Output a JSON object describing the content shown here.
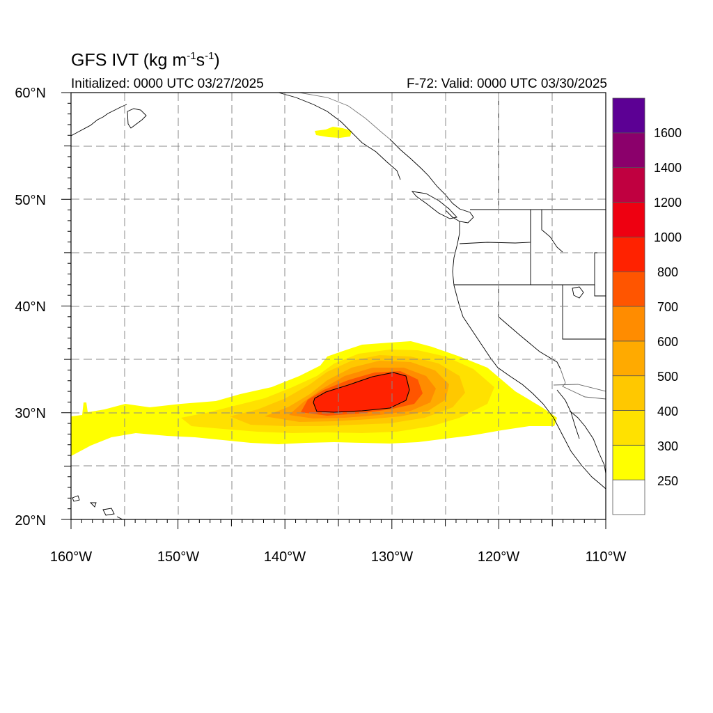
{
  "title": {
    "main_prefix": "GFS IVT (kg m",
    "exp1": "-1",
    "main_mid": "s",
    "exp2": "-1",
    "main_suffix": ")",
    "initialized": "Initialized: 0000 UTC 03/27/2025",
    "valid": "F-72: Valid: 0000 UTC 03/30/2025"
  },
  "map": {
    "lon_range": [
      -160,
      -110
    ],
    "lat_range": [
      20,
      60
    ],
    "lon_labels": [
      "160°W",
      "150°W",
      "140°W",
      "130°W",
      "120°W",
      "110°W"
    ],
    "lat_labels": [
      "60°N",
      "50°N",
      "40°N",
      "30°N",
      "20°N"
    ],
    "grid": "dashed every 5°",
    "contour_level": 800
  },
  "colorbar": {
    "labels": [
      "250",
      "300",
      "400",
      "500",
      "600",
      "700",
      "800",
      "1000",
      "1200",
      "1400",
      "1600"
    ],
    "colors": [
      "#ffffff",
      "#ffff00",
      "#ffe100",
      "#ffc800",
      "#ffaa00",
      "#ff8c00",
      "#ff5500",
      "#ff2200",
      "#ee0011",
      "#c00040",
      "#8b006b",
      "#5c0094"
    ]
  }
}
